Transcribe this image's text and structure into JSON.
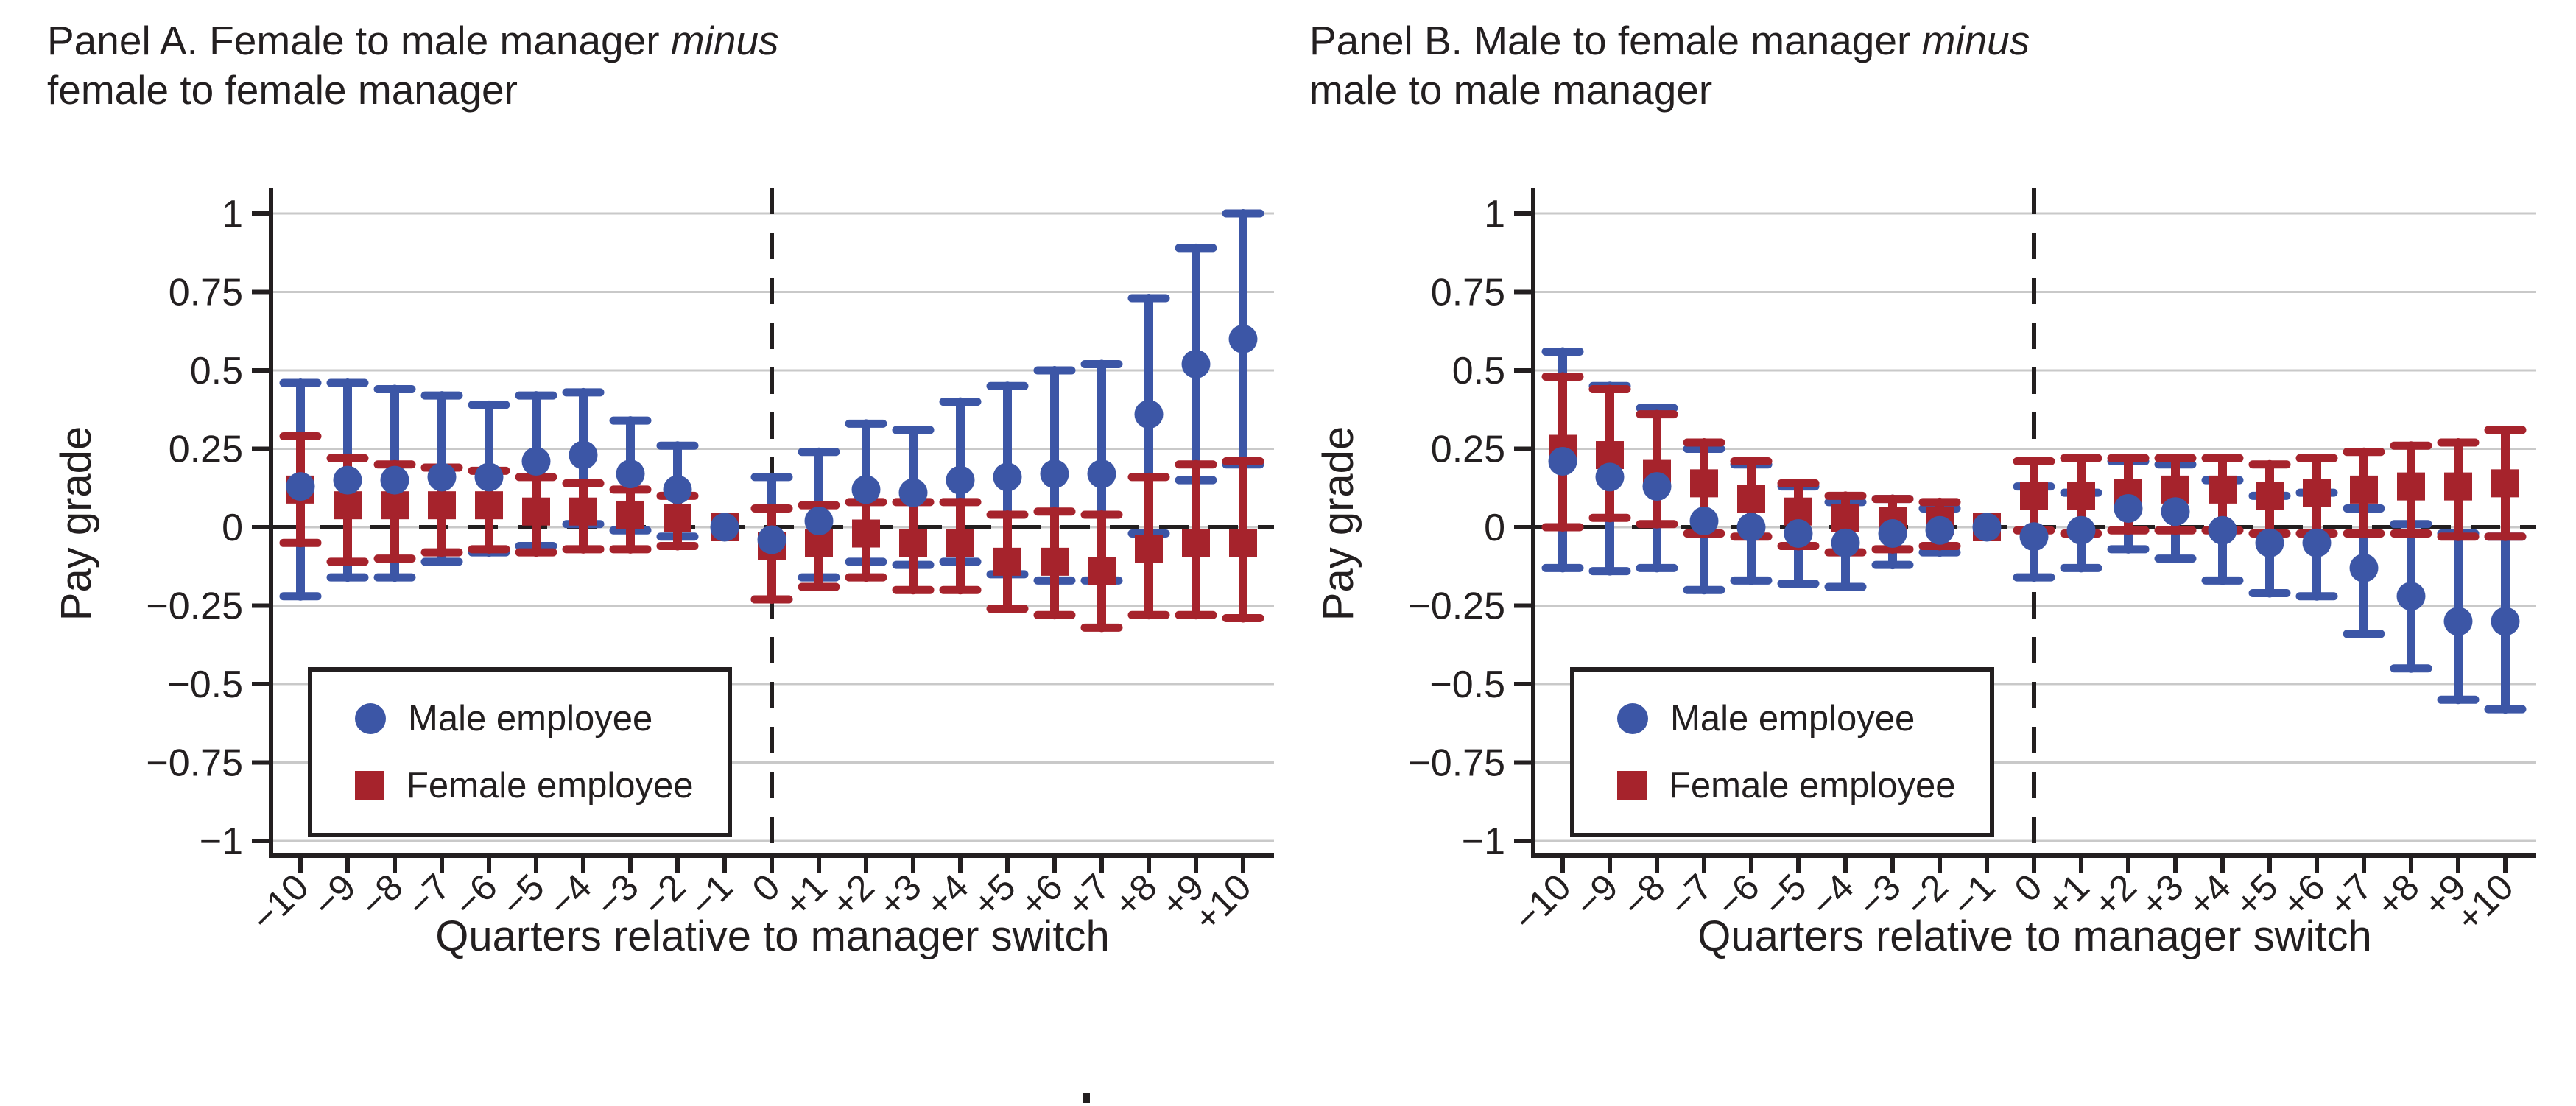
{
  "figure": {
    "xlabel": "Quarters relative to manager switch",
    "ylabel": "Pay grade",
    "legend": {
      "male": "Male employee",
      "female": "Female employee"
    },
    "colors": {
      "male": "#3C56A6",
      "female": "#A6232C",
      "grid": "#C9C9C9",
      "axis": "#231F20"
    }
  },
  "chart_data": [
    {
      "panel": "A",
      "type": "scatter",
      "title_prefix": "Panel A. Female to male manager ",
      "title_italic": "minus",
      "title_line2": "female to female manager",
      "xlabel": "Quarters relative to manager switch",
      "ylabel": "Pay grade",
      "ylim": [
        -1,
        1
      ],
      "grid": true,
      "legend_position": "bottom-left",
      "zero_line": "dashed",
      "vline_x": 0,
      "yticks": [
        1,
        0.75,
        0.5,
        0.25,
        0,
        -0.25,
        -0.5,
        -0.75,
        -1
      ],
      "ytick_labels": [
        "1",
        "0.75",
        "0.5",
        "0.25",
        "0",
        "−0.25",
        "−0.5",
        "−0.75",
        "−1"
      ],
      "x": [
        -10,
        -9,
        -8,
        -7,
        -6,
        -5,
        -4,
        -3,
        -2,
        -1,
        0,
        1,
        2,
        3,
        4,
        5,
        6,
        7,
        8,
        9,
        10
      ],
      "x_tick_labels": [
        "−10",
        "−9",
        "−8",
        "−7",
        "−6",
        "−5",
        "−4",
        "−3",
        "−2",
        "−1",
        "0",
        "+1",
        "+2",
        "+3",
        "+4",
        "+5",
        "+6",
        "+7",
        "+8",
        "+9",
        "+10"
      ],
      "series": [
        {
          "name": "Male employee",
          "marker": "circle",
          "color": "#3C56A6",
          "values": [
            0.13,
            0.15,
            0.15,
            0.16,
            0.16,
            0.21,
            0.23,
            0.17,
            0.12,
            0,
            -0.04,
            0.02,
            0.12,
            0.11,
            0.15,
            0.16,
            0.17,
            0.17,
            0.36,
            0.52,
            0.6
          ],
          "ci_low": [
            -0.22,
            -0.16,
            -0.16,
            -0.11,
            -0.08,
            -0.06,
            0.01,
            -0.01,
            -0.03,
            null,
            -0.23,
            -0.16,
            -0.11,
            -0.12,
            -0.11,
            -0.15,
            -0.17,
            -0.17,
            -0.02,
            0.15,
            0.2
          ],
          "ci_high": [
            0.46,
            0.46,
            0.44,
            0.42,
            0.39,
            0.42,
            0.43,
            0.34,
            0.26,
            null,
            0.16,
            0.24,
            0.33,
            0.31,
            0.4,
            0.45,
            0.5,
            0.52,
            0.73,
            0.89,
            1.0
          ]
        },
        {
          "name": "Female employee",
          "marker": "square",
          "color": "#A6232C",
          "values": [
            0.12,
            0.07,
            0.07,
            0.07,
            0.07,
            0.05,
            0.05,
            0.04,
            0.03,
            0,
            -0.06,
            -0.05,
            -0.02,
            -0.05,
            -0.05,
            -0.11,
            -0.11,
            -0.14,
            -0.07,
            -0.05,
            -0.05
          ],
          "ci_low": [
            -0.05,
            -0.11,
            -0.1,
            -0.08,
            -0.07,
            -0.08,
            -0.07,
            -0.07,
            -0.06,
            null,
            -0.23,
            -0.19,
            -0.16,
            -0.2,
            -0.2,
            -0.26,
            -0.28,
            -0.32,
            -0.28,
            -0.28,
            -0.29
          ],
          "ci_high": [
            0.29,
            0.22,
            0.2,
            0.19,
            0.18,
            0.16,
            0.14,
            0.12,
            0.1,
            null,
            0.06,
            0.07,
            0.08,
            0.08,
            0.08,
            0.04,
            0.05,
            0.04,
            0.16,
            0.2,
            0.21
          ]
        }
      ]
    },
    {
      "panel": "B",
      "type": "scatter",
      "title_prefix": "Panel B. Male to female manager ",
      "title_italic": "minus",
      "title_line2": "male to male manager",
      "xlabel": "Quarters relative to manager switch",
      "ylabel": "Pay grade",
      "ylim": [
        -1,
        1
      ],
      "grid": true,
      "legend_position": "bottom-left",
      "zero_line": "dashed",
      "vline_x": 0,
      "yticks": [
        1,
        0.75,
        0.5,
        0.25,
        0,
        -0.25,
        -0.5,
        -0.75,
        -1
      ],
      "ytick_labels": [
        "1",
        "0.75",
        "0.5",
        "0.25",
        "0",
        "−0.25",
        "−0.5",
        "−0.75",
        "−1"
      ],
      "x": [
        -10,
        -9,
        -8,
        -7,
        -6,
        -5,
        -4,
        -3,
        -2,
        -1,
        0,
        1,
        2,
        3,
        4,
        5,
        6,
        7,
        8,
        9,
        10
      ],
      "x_tick_labels": [
        "−10",
        "−9",
        "−8",
        "−7",
        "−6",
        "−5",
        "−4",
        "−3",
        "−2",
        "−1",
        "0",
        "+1",
        "+2",
        "+3",
        "+4",
        "+5",
        "+6",
        "+7",
        "+8",
        "+9",
        "+10"
      ],
      "series": [
        {
          "name": "Male employee",
          "marker": "circle",
          "color": "#3C56A6",
          "values": [
            0.21,
            0.16,
            0.13,
            0.02,
            0.0,
            -0.02,
            -0.05,
            -0.02,
            -0.01,
            0,
            -0.03,
            -0.01,
            0.06,
            0.05,
            -0.01,
            -0.05,
            -0.05,
            -0.13,
            -0.22,
            -0.3,
            -0.3
          ],
          "ci_low": [
            -0.13,
            -0.14,
            -0.13,
            -0.2,
            -0.17,
            -0.18,
            -0.19,
            -0.12,
            -0.08,
            null,
            -0.16,
            -0.13,
            -0.07,
            -0.1,
            -0.17,
            -0.21,
            -0.22,
            -0.34,
            -0.45,
            -0.55,
            -0.58
          ],
          "ci_high": [
            0.56,
            0.45,
            0.38,
            0.25,
            0.2,
            0.13,
            0.08,
            0.09,
            0.06,
            null,
            0.13,
            0.11,
            0.21,
            0.2,
            0.15,
            0.1,
            0.11,
            0.06,
            0.01,
            -0.02,
            -0.03
          ]
        },
        {
          "name": "Female employee",
          "marker": "square",
          "color": "#A6232C",
          "values": [
            0.25,
            0.23,
            0.17,
            0.14,
            0.09,
            0.05,
            0.03,
            0.02,
            0.02,
            0,
            0.1,
            0.1,
            0.11,
            0.12,
            0.12,
            0.1,
            0.11,
            0.12,
            0.13,
            0.13,
            0.14
          ],
          "ci_low": [
            0.0,
            0.03,
            0.01,
            -0.02,
            -0.03,
            -0.06,
            -0.08,
            -0.07,
            -0.06,
            null,
            -0.01,
            -0.02,
            -0.01,
            -0.01,
            -0.01,
            -0.02,
            -0.02,
            -0.02,
            -0.02,
            -0.03,
            -0.03
          ],
          "ci_high": [
            0.48,
            0.44,
            0.36,
            0.27,
            0.21,
            0.14,
            0.1,
            0.09,
            0.08,
            null,
            0.21,
            0.22,
            0.22,
            0.22,
            0.22,
            0.2,
            0.22,
            0.24,
            0.26,
            0.27,
            0.31
          ]
        }
      ]
    }
  ]
}
